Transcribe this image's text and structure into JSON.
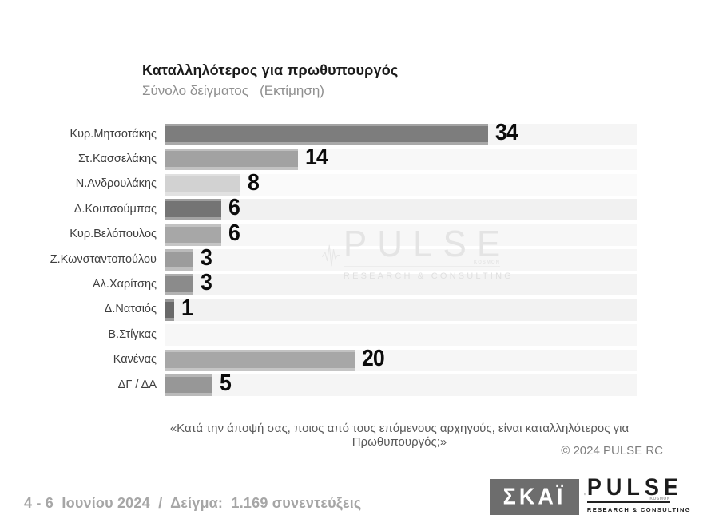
{
  "header": {
    "title": "Καταλληλότερος για πρωθυπουργός",
    "subtitle": "Σύνολο δείγματος   (Εκτίμηση)"
  },
  "chart_data": {
    "type": "bar",
    "orientation": "horizontal",
    "title": "Καταλληλότερος για πρωθυπουργός",
    "subtitle": "Σύνολο δείγματος (Εκτίμηση)",
    "xlabel": "",
    "ylabel": "",
    "xlim": [
      0,
      50
    ],
    "grid": false,
    "legend": false,
    "categories": [
      "Κυρ.Μητσοτάκης",
      "Στ.Κασσελάκης",
      "Ν.Ανδρουλάκης",
      "Δ.Κουτσούμπας",
      "Κυρ.Βελόπουλος",
      "Ζ.Κωνσταντοπούλου",
      "Αλ.Χαρίτσης",
      "Δ.Νατσιός",
      "Β.Στίγκας",
      "Κανένας",
      "ΔΓ / ΔΑ"
    ],
    "values": [
      34,
      14,
      8,
      6,
      6,
      3,
      3,
      1,
      0,
      20,
      5
    ],
    "value_labels": [
      "34",
      "14",
      "8",
      "6",
      "6",
      "3",
      "3",
      "1",
      "",
      "20",
      "5"
    ],
    "bar_colors": [
      "#7d7d7d",
      "#a2a2a2",
      "#d2d2d2",
      "#747474",
      "#a7a7a7",
      "#9c9c9c",
      "#8b8b8b",
      "#696969",
      "",
      "#a7a7a7",
      "#979797"
    ],
    "track_colors": [
      "#f5f5f5",
      "#f8f8f8",
      "#fafafa",
      "#f1f1f1",
      "#f7f7f7",
      "#f6f6f6",
      "#f3f3f3",
      "#f2f2f2",
      "#f7f7f7",
      "#f6f6f6",
      "#f5f5f5"
    ]
  },
  "watermark": {
    "word": "PULSE",
    "small": "KOSMON",
    "tagline": "RESEARCH & CONSULTING"
  },
  "footnote": "«Κατά την άποψή σας, ποιος από τους επόμενους αρχηγούς, είναι καταλληλότερος για Πρωθυπουργός;»",
  "copyright": "© 2024 PULSE RC",
  "footer": {
    "date_sample": "4 - 6  Ιουνίου 2024  /  Δείγμα:  1.169 συνεντεύξεις",
    "skai_logo": "ΣΚΑΪ",
    "pulse_logo": {
      "word": "PULSE",
      "small": "KOSMON",
      "tagline": "RESEARCH & CONSULTING"
    }
  }
}
